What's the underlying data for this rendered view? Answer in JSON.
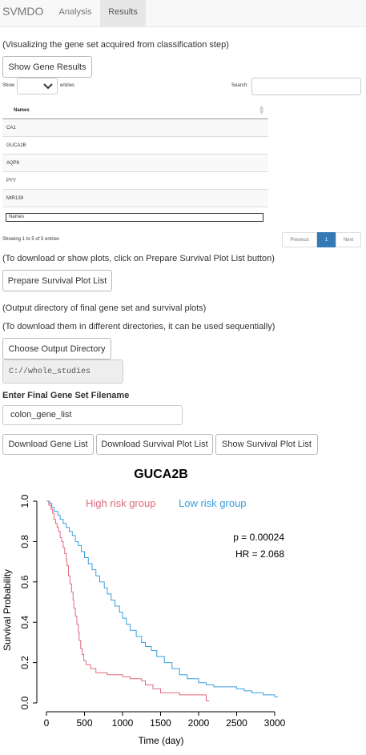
{
  "navbar": {
    "brand": "SVMDO",
    "tabs": [
      {
        "label": "Analysis"
      },
      {
        "label": "Results"
      }
    ]
  },
  "results": {
    "intro": "(Visualizing the gene set acquired from classification step)",
    "show_gene_results": "Show Gene Results",
    "show_label": "Show",
    "entries_label": "entries",
    "search_label": "Search:",
    "table": {
      "header": "Names",
      "rows": [
        "CA1",
        "GUCA2B",
        "AQP8",
        "PYY",
        "MIR139"
      ],
      "filter_placeholder": "Names"
    },
    "info": "Showing 1 to 5 of 5 entries",
    "pagination": {
      "previous": "Previous",
      "page": "1",
      "next": "Next"
    },
    "survival_hint": "(To download or show plots, click on Prepare Survival Plot List button)",
    "prepare_button": "Prepare Survival Plot List",
    "output_hint1": "(Output directory of final gene set and survival plots)",
    "output_hint2": "(To download them in different directories, it can be used sequentially)",
    "choose_dir_button": "Choose Output Directory",
    "output_dir": "C://whole_studies",
    "filename_label": "Enter Final Gene Set Filename",
    "filename_value": "colon_gene_list",
    "download_gene_list": "Download Gene List",
    "download_survival": "Download Survival Plot List",
    "show_survival": "Show Survival Plot List"
  },
  "colors": {
    "high_risk": "#e0697e",
    "low_risk": "#3a9ee0",
    "active_page": "#337ab7"
  },
  "chart_data": {
    "type": "line",
    "title": "GUCA2B",
    "xlabel": "Time (day)",
    "ylabel": "Survival Probability",
    "xlim": [
      0,
      3000
    ],
    "ylim": [
      0,
      1
    ],
    "xticks": [
      "0",
      "500",
      "1000",
      "1500",
      "2000",
      "2500",
      "3000"
    ],
    "yticks": [
      "0.0",
      "0.2",
      "0.4",
      "0.6",
      "0.8",
      "1.0"
    ],
    "annotations": [
      "p = 0.00024",
      "HR = 2.068"
    ],
    "legend": "top",
    "series": [
      {
        "name": "High risk group",
        "color": "#e0697e",
        "points": [
          [
            0,
            1.0
          ],
          [
            30,
            0.98
          ],
          [
            60,
            0.96
          ],
          [
            80,
            0.94
          ],
          [
            100,
            0.91
          ],
          [
            120,
            0.89
          ],
          [
            140,
            0.87
          ],
          [
            160,
            0.85
          ],
          [
            180,
            0.82
          ],
          [
            200,
            0.8
          ],
          [
            220,
            0.77
          ],
          [
            240,
            0.74
          ],
          [
            260,
            0.71
          ],
          [
            270,
            0.68
          ],
          [
            290,
            0.63
          ],
          [
            310,
            0.59
          ],
          [
            330,
            0.55
          ],
          [
            350,
            0.51
          ],
          [
            360,
            0.47
          ],
          [
            380,
            0.43
          ],
          [
            400,
            0.39
          ],
          [
            420,
            0.35
          ],
          [
            430,
            0.31
          ],
          [
            450,
            0.27
          ],
          [
            470,
            0.24
          ],
          [
            490,
            0.21
          ],
          [
            520,
            0.19
          ],
          [
            580,
            0.17
          ],
          [
            650,
            0.15
          ],
          [
            800,
            0.14
          ],
          [
            1000,
            0.13
          ],
          [
            1100,
            0.12
          ],
          [
            1250,
            0.11
          ],
          [
            1300,
            0.09
          ],
          [
            1400,
            0.07
          ],
          [
            1500,
            0.05
          ],
          [
            1750,
            0.04
          ],
          [
            2100,
            0.01
          ],
          [
            2140,
            0.01
          ]
        ]
      },
      {
        "name": "Low risk group",
        "color": "#3a9ee0",
        "points": [
          [
            0,
            1.0
          ],
          [
            40,
            0.99
          ],
          [
            70,
            0.97
          ],
          [
            100,
            0.95
          ],
          [
            150,
            0.93
          ],
          [
            180,
            0.91
          ],
          [
            220,
            0.89
          ],
          [
            260,
            0.87
          ],
          [
            300,
            0.85
          ],
          [
            340,
            0.83
          ],
          [
            380,
            0.8
          ],
          [
            420,
            0.78
          ],
          [
            460,
            0.75
          ],
          [
            500,
            0.72
          ],
          [
            550,
            0.69
          ],
          [
            600,
            0.66
          ],
          [
            650,
            0.63
          ],
          [
            700,
            0.6
          ],
          [
            760,
            0.57
          ],
          [
            800,
            0.54
          ],
          [
            850,
            0.51
          ],
          [
            900,
            0.48
          ],
          [
            960,
            0.45
          ],
          [
            1000,
            0.42
          ],
          [
            1050,
            0.39
          ],
          [
            1100,
            0.36
          ],
          [
            1180,
            0.33
          ],
          [
            1250,
            0.3
          ],
          [
            1300,
            0.28
          ],
          [
            1380,
            0.26
          ],
          [
            1450,
            0.23
          ],
          [
            1550,
            0.2
          ],
          [
            1650,
            0.17
          ],
          [
            1750,
            0.14
          ],
          [
            1850,
            0.12
          ],
          [
            2000,
            0.1
          ],
          [
            2100,
            0.09
          ],
          [
            2200,
            0.08
          ],
          [
            2500,
            0.07
          ],
          [
            2600,
            0.06
          ],
          [
            2700,
            0.05
          ],
          [
            2850,
            0.04
          ],
          [
            3000,
            0.03
          ],
          [
            3040,
            0.03
          ]
        ]
      }
    ]
  }
}
